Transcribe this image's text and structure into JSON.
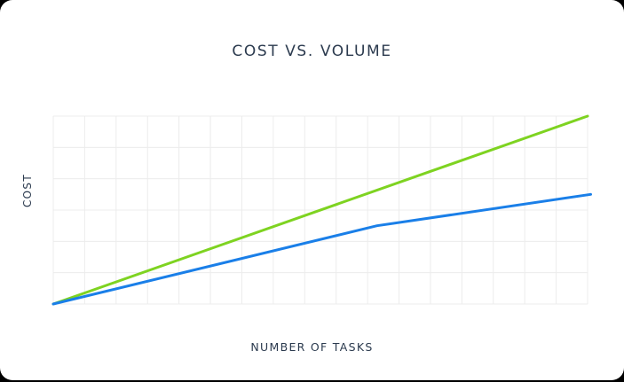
{
  "chart_data": {
    "type": "line",
    "title": "COST VS. VOLUME",
    "xlabel": "NUMBER OF TASKS",
    "ylabel": "COST",
    "grid": true,
    "xlim": [
      0,
      17
    ],
    "ylim": [
      0,
      6
    ],
    "series": [
      {
        "color": "#7ed321",
        "x": [
          0,
          17
        ],
        "y": [
          0,
          6
        ]
      },
      {
        "color": "#1a7fe8",
        "x": [
          0,
          10.3,
          17.1
        ],
        "y": [
          0,
          2.5,
          3.5
        ]
      }
    ]
  }
}
